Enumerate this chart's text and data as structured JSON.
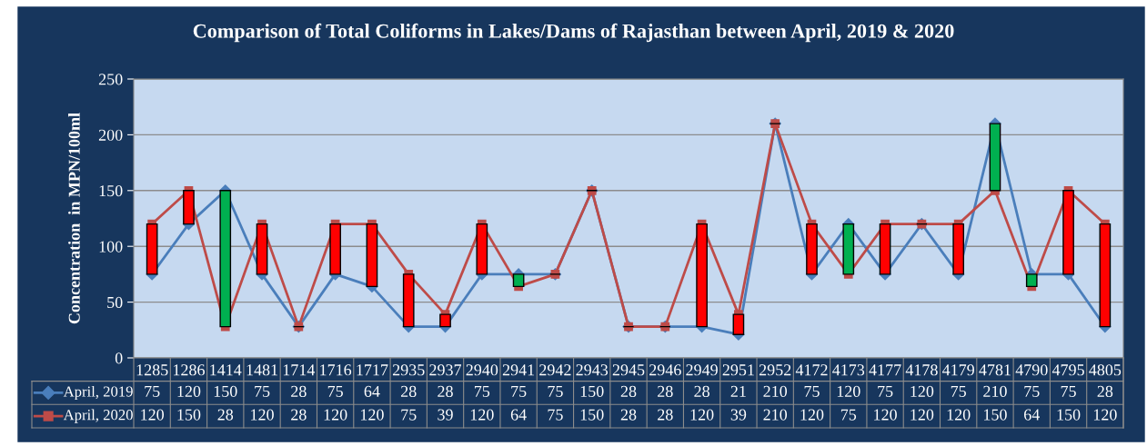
{
  "chart_data": {
    "type": "line",
    "title": "Comparison of Total Coliforms in Lakes/Dams of Rajasthan between April, 2019 & 2020",
    "ylabel": "Concentration  in MPN/100ml",
    "categories": [
      "1285",
      "1286",
      "1414",
      "1481",
      "1714",
      "1716",
      "1717",
      "2935",
      "2937",
      "2940",
      "2941",
      "2942",
      "2943",
      "2945",
      "2946",
      "2949",
      "2951",
      "2952",
      "4172",
      "4173",
      "4177",
      "4178",
      "4179",
      "4781",
      "4790",
      "4795",
      "4805"
    ],
    "series": [
      {
        "name": "April, 2019",
        "color": "#4a7ebb",
        "marker": "diamond",
        "values": [
          75,
          120,
          150,
          75,
          28,
          75,
          64,
          28,
          28,
          75,
          75,
          75,
          150,
          28,
          28,
          28,
          21,
          210,
          75,
          120,
          75,
          120,
          75,
          210,
          75,
          75,
          28
        ]
      },
      {
        "name": "April, 2020",
        "color": "#be4b48",
        "marker": "square",
        "values": [
          120,
          150,
          28,
          120,
          28,
          120,
          120,
          75,
          39,
          120,
          64,
          75,
          150,
          28,
          28,
          120,
          39,
          210,
          120,
          75,
          120,
          120,
          120,
          150,
          64,
          150,
          120
        ]
      },
      {
        "type": "bar",
        "base": [
          75,
          120,
          150,
          75,
          28,
          75,
          64,
          28,
          28,
          75,
          75,
          75,
          150,
          28,
          28,
          28,
          21,
          210,
          75,
          120,
          75,
          120,
          75,
          210,
          75,
          75,
          28
        ],
        "values": [
          45,
          30,
          -122,
          45,
          0,
          45,
          56,
          47,
          11,
          45,
          -11,
          0,
          0,
          0,
          0,
          92,
          18,
          0,
          45,
          -45,
          45,
          0,
          45,
          -60,
          -11,
          75,
          92
        ],
        "colors": [
          "#ff0000",
          "#ff0000",
          "#00b050",
          "#ff0000",
          "#000000",
          "#ff0000",
          "#ff0000",
          "#ff0000",
          "#ff0000",
          "#ff0000",
          "#00b050",
          "#000000",
          "#000000",
          "#000000",
          "#000000",
          "#ff0000",
          "#ff0000",
          "#000000",
          "#ff0000",
          "#00b050",
          "#ff0000",
          "#000000",
          "#ff0000",
          "#00b050",
          "#00b050",
          "#ff0000",
          "#ff0000"
        ],
        "value_labels": [
          null,
          null,
          null,
          null,
          null,
          null,
          null,
          null,
          null,
          null,
          null,
          null,
          null,
          null,
          null,
          null,
          null,
          null,
          null,
          null,
          null,
          null,
          null,
          null,
          null,
          null,
          null
        ]
      }
    ],
    "ylim": [
      0,
      250
    ],
    "yticks": [
      0,
      50,
      100,
      150,
      200,
      250
    ],
    "grid": "y",
    "legend": "bottom",
    "data_labels": true
  }
}
